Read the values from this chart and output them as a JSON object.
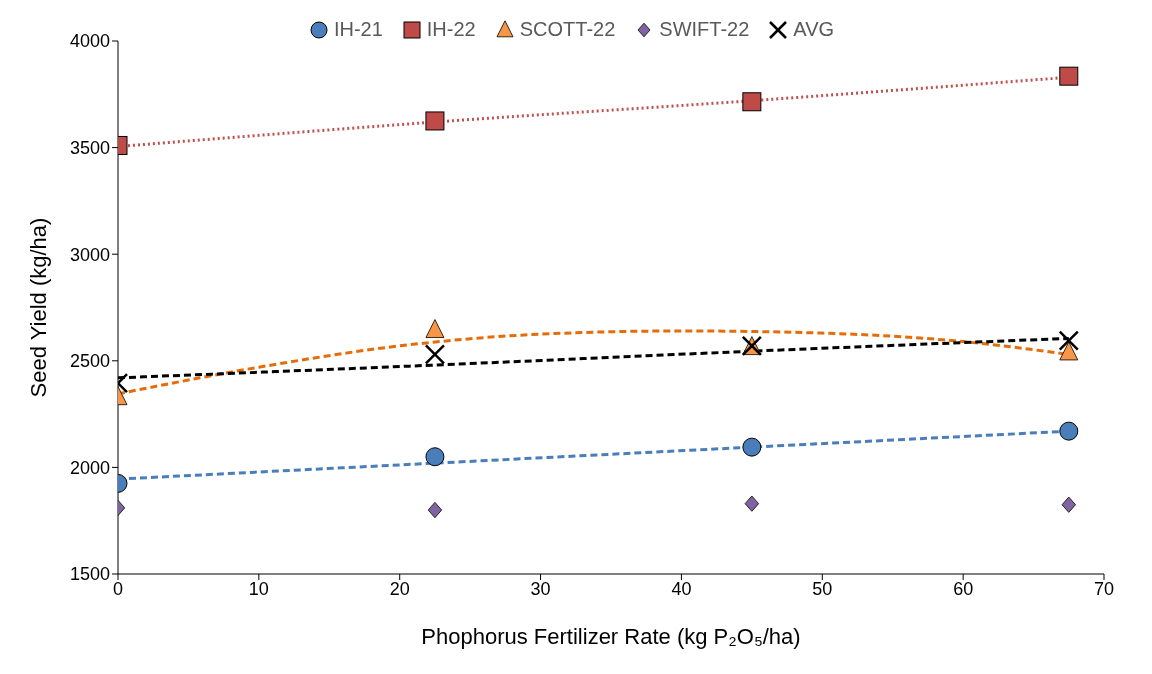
{
  "chart_data": {
    "type": "scatter",
    "xlabel": "Phophorus Fertilizer Rate (kg P₂O₅/ha)",
    "ylabel": "Seed Yield (kg/ha)",
    "x": [
      0,
      22.5,
      45,
      67.5
    ],
    "series": [
      {
        "name": "IH-21",
        "color": "#4a7ebb",
        "marker": "circle",
        "values": [
          1925,
          2050,
          2095,
          2170
        ]
      },
      {
        "name": "IH-22",
        "color": "#be4b48",
        "marker": "square",
        "values": [
          3510,
          3625,
          3715,
          3835
        ]
      },
      {
        "name": "SCOTT-22",
        "color": "#f79646",
        "marker": "triangle",
        "values": [
          2330,
          2645,
          2565,
          2540
        ]
      },
      {
        "name": "SWIFT-22",
        "color": "#8064a2",
        "marker": "diamond",
        "values": [
          1810,
          1800,
          1830,
          1825
        ]
      },
      {
        "name": "AVG",
        "color": "#000000",
        "marker": "cross",
        "values": [
          2395,
          2530,
          2570,
          2595
        ]
      },
      {
        "type": "line",
        "color": "#4a7ebb",
        "line_style": "dashed",
        "x": [
          0,
          22.5,
          45,
          67.5
        ],
        "values": [
          1945,
          2020,
          2095,
          2170
        ]
      },
      {
        "type": "line",
        "color": "#c0504d",
        "line_style": "dotted",
        "x": [
          0,
          22.5,
          45,
          67.5
        ],
        "values": [
          3505,
          3620,
          3720,
          3830
        ]
      },
      {
        "type": "line",
        "color": "#e46c0a",
        "line_style": "dashed",
        "x": [
          0,
          10,
          20,
          30,
          40,
          50,
          60,
          67.5
        ],
        "values": [
          2345,
          2470,
          2570,
          2625,
          2640,
          2630,
          2590,
          2530
        ]
      },
      {
        "type": "line",
        "color": "#000000",
        "line_style": "dashed",
        "x": [
          0,
          22.5,
          45,
          67.5
        ],
        "values": [
          2420,
          2480,
          2545,
          2605
        ]
      }
    ],
    "xlim": [
      0,
      70
    ],
    "xticks": [
      0,
      10,
      20,
      30,
      40,
      50,
      60,
      70
    ],
    "ylim": [
      1500,
      4000
    ],
    "yticks": [
      1500,
      2000,
      2500,
      3000,
      3500,
      4000
    ],
    "grid": false,
    "legend": "top"
  }
}
